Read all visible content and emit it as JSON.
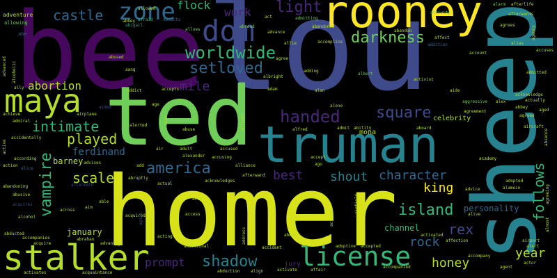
{
  "palette": {
    "purple": "#46085c",
    "violet": "#482878",
    "indigo": "#3e4a89",
    "blue": "#31688e",
    "teal": "#26828e",
    "cyan": "#1f9e89",
    "green": "#35b779",
    "lime": "#6ece58",
    "yellowgreen": "#b5de2b",
    "yellow": "#fde725"
  },
  "words": {
    "bee": "bee",
    "lou": "lou",
    "sheep": "sheep",
    "homer": "homer",
    "ted": "ted",
    "truman": "truman",
    "rooney": "rooney",
    "stalker": "stalker",
    "maya": "maya",
    "dom": "dom",
    "license": "license",
    "zone": "zone",
    "worldwide": "worldwide",
    "setloved": "setloved",
    "castle": "castle",
    "light": "light",
    "darkness": "darkness",
    "handed": "handed",
    "square": "square",
    "intimate": "intimate",
    "played": "played",
    "vampire": "vampire",
    "america": "america",
    "scale": "scale",
    "abortion": "abortion",
    "mile": "mile",
    "flock": "flock",
    "work": "work",
    "best": "best",
    "shout": "shout",
    "character": "character",
    "island": "island",
    "king": "king",
    "follows": "follows",
    "rex": "rex",
    "rock": "rock",
    "honey": "honey",
    "year": "year",
    "personality": "personality",
    "shadow": "shadow",
    "prompt": "prompt",
    "ferdinand": "ferdinand",
    "barney": "barney",
    "january": "january",
    "channel": "channel",
    "adventure": "adventure",
    "allowing": "allowing",
    "abbey": "abbey",
    "abigail": "abigail",
    "abducts": "abducts",
    "afraid": "afraid",
    "allowed": "allowed",
    "abandoned": "abandoned",
    "admitting": "admitting",
    "activity": "activity",
    "afterlife": "afterlife",
    "afterwards": "afterwards",
    "alarm": "alarm",
    "agency": "agency",
    "agrees": "agrees",
    "abandon": "abandon",
    "affect": "affect",
    "addition": "addition",
    "account": "account",
    "alias": "alias",
    "accuses": "accuses",
    "admitted": "admitted",
    "acknowledge": "acknowledge",
    "actually": "actually",
    "abbey2": "abbey",
    "aged": "aged",
    "agreed": "agreed",
    "alex": "alex",
    "agreement": "agreement",
    "aircraft": "aircraft",
    "absence": "absence",
    "academy": "academy",
    "adopted": "adopted",
    "alamein": "alamein",
    "advice": "advice",
    "agreeing": "agreeing",
    "almost": "almost",
    "airport": "airport",
    "alert": "alert",
    "actor": "actor",
    "agent": "agent",
    "accompany": "accompany",
    "affection": "affection",
    "alive": "alive",
    "activated": "activated",
    "accompanied": "accompanied",
    "adoptive": "adoptive",
    "accepted": "accepted",
    "actress": "actress",
    "airfield": "airfield",
    "accident": "accident",
    "activate": "activate",
    "affair": "affair",
    "jury": "jury",
    "abduction": "abduction",
    "align": "align",
    "address": "address",
    "additional": "additional",
    "acting": "acting",
    "ahead": "ahead",
    "acid": "acid",
    "access": "access",
    "across": "across",
    "aim": "aim",
    "able": "able",
    "acquired": "acquired",
    "acquires": "acquires",
    "aftermath": "aftermath",
    "abrahan": "abrahan",
    "advantage": "advantage",
    "acquaintance": "acquaintance",
    "accompanies": "accompanies",
    "acquire": "acquire",
    "activates": "activates",
    "abducted": "abducted",
    "alcohol": "alcohol",
    "abusive": "abusive",
    "abandoning": "abandoning",
    "action": "action",
    "alice": "alice",
    "according": "according",
    "accidentally": "accidentally",
    "active": "active",
    "admiral": "admiral",
    "achieve": "achieve",
    "ally": "ally",
    "alcoholic": "alcoholic",
    "advanced": "advanced",
    "adult": "adult",
    "alexander": "alexander",
    "accusing": "accusing",
    "accused": "accused",
    "alliance": "alliance",
    "afterward": "afterward",
    "acknowledges": "acknowledges",
    "actual": "actual",
    "abruptly": "abruptly",
    "advises": "advises",
    "add": "add",
    "air": "air",
    "abuse": "abuse",
    "alerted": "alerted",
    "alec": "alec",
    "age": "age",
    "aided": "aided",
    "addict": "addict",
    "accepts": "accepts",
    "airplane": "airplane",
    "aang": "aang",
    "abused": "abused",
    "allows": "allows",
    "abroad": "abroad",
    "act": "act",
    "advance": "advance",
    "accomplice": "accomplice",
    "agree": "agree",
    "adding": "adding",
    "albert": "albert",
    "albright": "albright",
    "adam": "adam",
    "alan": "alan",
    "activist": "activist",
    "aide": "aide",
    "aggressive": "aggressive",
    "allison": "allison",
    "alone": "alone",
    "alfred": "alfred",
    "admit": "admit",
    "ability": "ability",
    "aboard": "aboard",
    "celebrity": "celebrity",
    "mona": "mona",
    "accept": "accept",
    "ago": "ago",
    "allie": "allie",
    "al": "al",
    "abe": "abe",
    "aging": "aging"
  }
}
